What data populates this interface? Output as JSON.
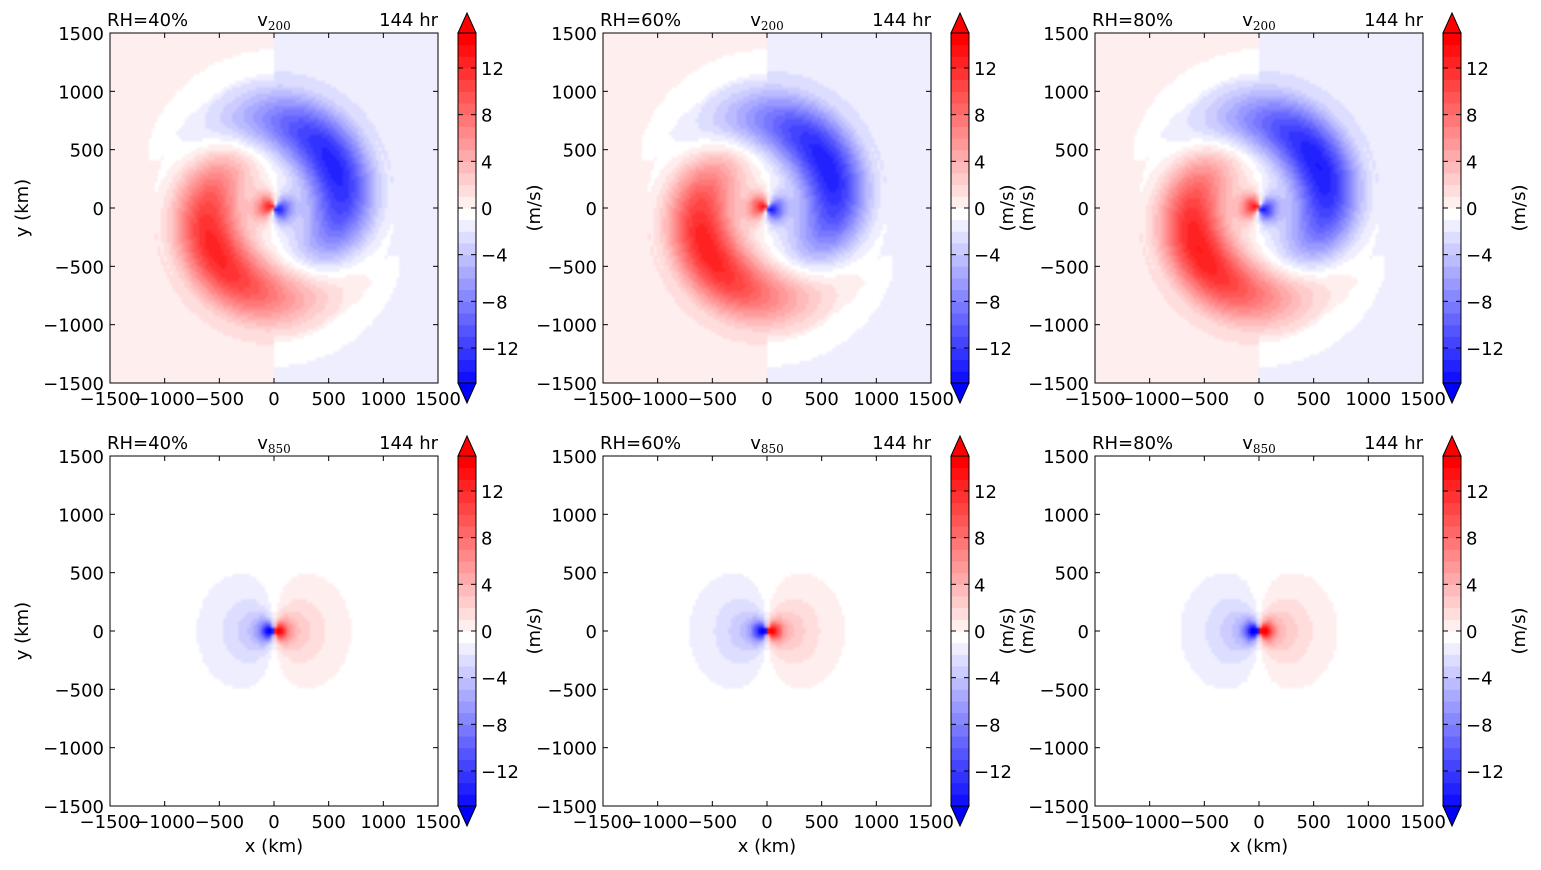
{
  "figure": {
    "background": "#ffffff",
    "colors": {
      "positive_max": "#ff0000",
      "negative_max": "#0000ff",
      "neutral": "#ffffff",
      "axes": "#000000"
    }
  },
  "chart_data": [
    {
      "type": "heatmap",
      "panel_id": "p1",
      "title_left": "RH=40%",
      "title_center": "v",
      "title_center_sub": "200",
      "title_right": "144 hr",
      "xlabel": "",
      "ylabel": "y (km)",
      "cbar_label": "(m/s)",
      "xlim": [
        -1500,
        1500
      ],
      "ylim": [
        -1500,
        1500
      ],
      "xticks": [
        -1500,
        -1000,
        -500,
        0,
        500,
        1000,
        1500
      ],
      "yticks": [
        -1500,
        -1000,
        -500,
        0,
        500,
        1000,
        1500
      ],
      "cbar_range": [
        -15,
        15
      ],
      "cbar_ticks": [
        -12,
        -8,
        -4,
        0,
        4,
        8,
        12
      ],
      "cbar_extend": "both",
      "pattern": "spiral",
      "moist": 0
    },
    {
      "type": "heatmap",
      "panel_id": "p2",
      "title_left": "RH=60%",
      "title_center": "v",
      "title_center_sub": "200",
      "title_right": "144 hr",
      "xlabel": "",
      "ylabel": "",
      "cbar_label": "(m/s)",
      "xlim": [
        -1500,
        1500
      ],
      "ylim": [
        -1500,
        1500
      ],
      "xticks": [
        -1500,
        -1000,
        -500,
        0,
        500,
        1000,
        1500
      ],
      "yticks": [
        -1500,
        -1000,
        -500,
        0,
        500,
        1000,
        1500
      ],
      "cbar_range": [
        -15,
        15
      ],
      "cbar_ticks": [
        -12,
        -8,
        -4,
        0,
        4,
        8,
        12
      ],
      "cbar_extend": "both",
      "pattern": "spiral",
      "moist": 1
    },
    {
      "type": "heatmap",
      "panel_id": "p3",
      "title_left": "RH=80%",
      "title_center": "v",
      "title_center_sub": "200",
      "title_right": "144 hr",
      "xlabel": "",
      "ylabel": "(m/s)",
      "cbar_label": "(m/s)",
      "xlim": [
        -1500,
        1500
      ],
      "ylim": [
        -1500,
        1500
      ],
      "xticks": [
        -1500,
        -1000,
        -500,
        0,
        500,
        1000,
        1500
      ],
      "yticks": [
        -1500,
        -1000,
        -500,
        0,
        500,
        1000,
        1500
      ],
      "cbar_range": [
        -15,
        15
      ],
      "cbar_ticks": [
        -12,
        -8,
        -4,
        0,
        4,
        8,
        12
      ],
      "cbar_extend": "both",
      "pattern": "spiral",
      "moist": 2
    },
    {
      "type": "heatmap",
      "panel_id": "p4",
      "title_left": "RH=40%",
      "title_center": "v",
      "title_center_sub": "850",
      "title_right": "144 hr",
      "xlabel": "x (km)",
      "ylabel": "y (km)",
      "cbar_label": "(m/s)",
      "xlim": [
        -1500,
        1500
      ],
      "ylim": [
        -1500,
        1500
      ],
      "xticks": [
        -1500,
        -1000,
        -500,
        0,
        500,
        1000,
        1500
      ],
      "yticks": [
        -1500,
        -1000,
        -500,
        0,
        500,
        1000,
        1500
      ],
      "cbar_range": [
        -15,
        15
      ],
      "cbar_ticks": [
        -12,
        -8,
        -4,
        0,
        4,
        8,
        12
      ],
      "cbar_extend": "both",
      "pattern": "dipole",
      "moist": 0
    },
    {
      "type": "heatmap",
      "panel_id": "p5",
      "title_left": "RH=60%",
      "title_center": "v",
      "title_center_sub": "850",
      "title_right": "144 hr",
      "xlabel": "x (km)",
      "ylabel": "",
      "cbar_label": "(m/s)",
      "xlim": [
        -1500,
        1500
      ],
      "ylim": [
        -1500,
        1500
      ],
      "xticks": [
        -1500,
        -1000,
        -500,
        0,
        500,
        1000,
        1500
      ],
      "yticks": [
        -1500,
        -1000,
        -500,
        0,
        500,
        1000,
        1500
      ],
      "cbar_range": [
        -15,
        15
      ],
      "cbar_ticks": [
        -12,
        -8,
        -4,
        0,
        4,
        8,
        12
      ],
      "cbar_extend": "both",
      "pattern": "dipole",
      "moist": 1
    },
    {
      "type": "heatmap",
      "panel_id": "p6",
      "title_left": "RH=80%",
      "title_center": "v",
      "title_center_sub": "850",
      "title_right": "144 hr",
      "xlabel": "x (km)",
      "ylabel": "(m/s)",
      "cbar_label": "(m/s)",
      "xlim": [
        -1500,
        1500
      ],
      "ylim": [
        -1500,
        1500
      ],
      "xticks": [
        -1500,
        -1000,
        -500,
        0,
        500,
        1000,
        1500
      ],
      "yticks": [
        -1500,
        -1000,
        -500,
        0,
        500,
        1000,
        1500
      ],
      "cbar_range": [
        -15,
        15
      ],
      "cbar_ticks": [
        -12,
        -8,
        -4,
        0,
        4,
        8,
        12
      ],
      "cbar_extend": "both",
      "pattern": "dipole",
      "moist": 2
    }
  ]
}
